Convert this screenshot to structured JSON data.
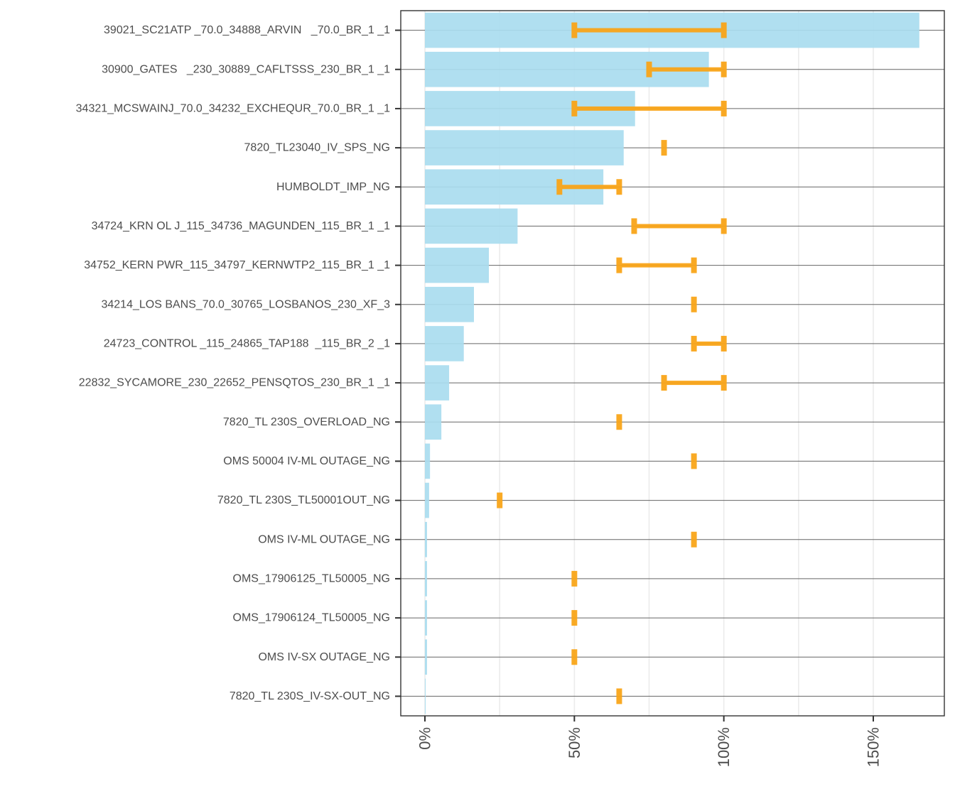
{
  "chart_data": {
    "type": "bar",
    "orientation": "horizontal",
    "title": "",
    "xlabel": "",
    "ylabel": "",
    "xlim": [
      -8,
      174
    ],
    "x_ticks": [
      0,
      50,
      100,
      150
    ],
    "x_tick_labels": [
      "0%",
      "50%",
      "100%",
      "150%"
    ],
    "x_minor_gridlines": [
      25,
      75,
      125
    ],
    "grid": true,
    "legend": "none",
    "colors": {
      "bar": "#a9dcef",
      "range": "#f9a519",
      "grid_major_y": "#666666",
      "grid_x": "#ebebeb",
      "text": "#4d4d4d",
      "axis": "#333333"
    },
    "categories": [
      "39021_SC21ATP _70.0_34888_ARVIN   _70.0_BR_1 _1",
      "30900_GATES   _230_30889_CAFLTSSS_230_BR_1 _1",
      "34321_MCSWAINJ_70.0_34232_EXCHEQUR_70.0_BR_1 _1",
      "7820_TL23040_IV_SPS_NG",
      "HUMBOLDT_IMP_NG",
      "34724_KRN OL J_115_34736_MAGUNDEN_115_BR_1 _1",
      "34752_KERN PWR_115_34797_KERNWTP2_115_BR_1 _1",
      "34214_LOS BANS_70.0_30765_LOSBANOS_230_XF_3",
      "24723_CONTROL _115_24865_TAP188  _115_BR_2 _1",
      "22832_SYCAMORE_230_22652_PENSQTOS_230_BR_1 _1",
      "7820_TL 230S_OVERLOAD_NG",
      "OMS 50004 IV-ML OUTAGE_NG",
      "7820_TL 230S_TL50001OUT_NG",
      "OMS IV-ML OUTAGE_NG",
      "OMS_17906125_TL50005_NG",
      "OMS_17906124_TL50005_NG",
      "OMS IV-SX OUTAGE_NG",
      "7820_TL 230S_IV-SX-OUT_NG"
    ],
    "series": [
      {
        "name": "value",
        "kind": "bar",
        "values": [
          165.4,
          95.0,
          70.3,
          66.5,
          59.7,
          31.0,
          21.4,
          16.4,
          13.0,
          8.1,
          5.5,
          1.7,
          1.4,
          0.7,
          0.7,
          0.7,
          0.7,
          0.2
        ]
      },
      {
        "name": "range",
        "kind": "errorbar",
        "low": [
          50,
          75,
          50,
          80,
          45,
          70,
          65,
          90,
          90,
          80,
          65,
          90,
          25,
          90,
          50,
          50,
          50,
          65
        ],
        "high": [
          100,
          100,
          100,
          80,
          65,
          100,
          90,
          90,
          100,
          100,
          65,
          90,
          25,
          90,
          50,
          50,
          50,
          65
        ]
      }
    ]
  }
}
